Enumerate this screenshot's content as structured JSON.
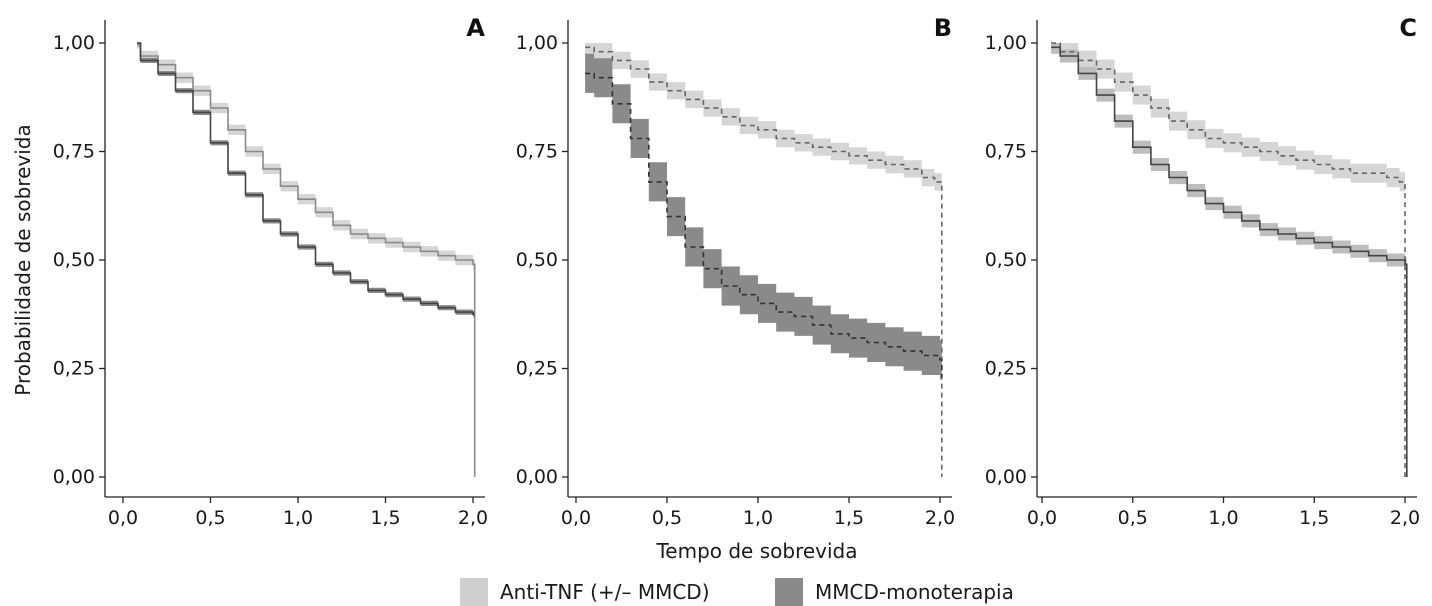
{
  "chart_data": {
    "type": "line",
    "subtype": "kaplan-meier survival curves with confidence bands",
    "ylabel": "Probabilidade de sobrevida",
    "xlabel": "Tempo de sobrevida",
    "xlim": [
      0,
      2
    ],
    "ylim": [
      0,
      1
    ],
    "x_ticks": [
      "0,0",
      "0,5",
      "1,0",
      "1,5",
      "2,0"
    ],
    "y_ticks": [
      "0,00",
      "0,25",
      "0,50",
      "0,75",
      "1,00"
    ],
    "legend": {
      "position": "bottom",
      "items": [
        {
          "label": "Anti-TNF (+/– MMCD)",
          "color": "#cfcfcf"
        },
        {
          "label": "MMCD-monoterapia",
          "color": "#8a8a8a"
        }
      ]
    },
    "panels": [
      {
        "label": "A",
        "line_style": "solid",
        "series": [
          {
            "name": "Anti-TNF (+/– MMCD)",
            "line_color": "#8a8a8a",
            "band_color": "#d6d6d6",
            "x": [
              0.08,
              0.1,
              0.2,
              0.3,
              0.4,
              0.5,
              0.6,
              0.7,
              0.8,
              0.9,
              1.0,
              1.1,
              1.2,
              1.3,
              1.4,
              1.5,
              1.6,
              1.7,
              1.8,
              1.9,
              2.0,
              2.01
            ],
            "y": [
              1.0,
              0.97,
              0.95,
              0.92,
              0.89,
              0.85,
              0.8,
              0.75,
              0.71,
              0.67,
              0.64,
              0.61,
              0.58,
              0.56,
              0.55,
              0.54,
              0.53,
              0.52,
              0.51,
              0.5,
              0.49,
              0.0
            ],
            "band_halfwidth": 0.012
          },
          {
            "name": "MMCD-monoterapia",
            "line_color": "#444444",
            "band_color": "#8a8a8a",
            "x": [
              0.08,
              0.1,
              0.2,
              0.3,
              0.4,
              0.5,
              0.6,
              0.7,
              0.8,
              0.9,
              1.0,
              1.1,
              1.2,
              1.3,
              1.4,
              1.5,
              1.6,
              1.7,
              1.8,
              1.9,
              2.0,
              2.01
            ],
            "y": [
              1.0,
              0.96,
              0.93,
              0.89,
              0.84,
              0.77,
              0.7,
              0.65,
              0.59,
              0.56,
              0.53,
              0.49,
              0.47,
              0.45,
              0.43,
              0.42,
              0.41,
              0.4,
              0.39,
              0.38,
              0.375,
              0.375
            ],
            "band_halfwidth": 0.006
          }
        ]
      },
      {
        "label": "B",
        "line_style": "dashed",
        "series": [
          {
            "name": "Anti-TNF (+/– MMCD)",
            "line_color": "#666666",
            "band_color": "#d6d6d6",
            "x": [
              0.05,
              0.1,
              0.2,
              0.3,
              0.4,
              0.5,
              0.6,
              0.7,
              0.8,
              0.9,
              1.0,
              1.1,
              1.2,
              1.3,
              1.4,
              1.5,
              1.6,
              1.7,
              1.8,
              1.9,
              1.97,
              2.01
            ],
            "y": [
              0.99,
              0.98,
              0.96,
              0.94,
              0.91,
              0.89,
              0.87,
              0.85,
              0.83,
              0.81,
              0.8,
              0.78,
              0.77,
              0.76,
              0.75,
              0.74,
              0.73,
              0.72,
              0.71,
              0.69,
              0.68,
              0.0
            ],
            "band_halfwidth": 0.02
          },
          {
            "name": "MMCD-monoterapia",
            "line_color": "#333333",
            "band_color": "#8a8a8a",
            "x": [
              0.05,
              0.1,
              0.2,
              0.3,
              0.4,
              0.5,
              0.6,
              0.7,
              0.8,
              0.9,
              1.0,
              1.1,
              1.2,
              1.3,
              1.4,
              1.5,
              1.6,
              1.7,
              1.8,
              1.9,
              2.0,
              2.01
            ],
            "y": [
              0.93,
              0.92,
              0.86,
              0.78,
              0.68,
              0.6,
              0.53,
              0.48,
              0.44,
              0.42,
              0.4,
              0.38,
              0.37,
              0.35,
              0.33,
              0.32,
              0.31,
              0.3,
              0.29,
              0.28,
              0.27,
              0.23
            ],
            "band_halfwidth": 0.045
          }
        ]
      },
      {
        "label": "C",
        "line_style": "mixed",
        "series": [
          {
            "name": "Anti-TNF (+/– MMCD)",
            "line_style": "dashed",
            "line_color": "#666666",
            "band_color": "#d6d6d6",
            "x": [
              0.05,
              0.1,
              0.2,
              0.3,
              0.4,
              0.5,
              0.6,
              0.7,
              0.8,
              0.9,
              1.0,
              1.1,
              1.2,
              1.3,
              1.4,
              1.5,
              1.6,
              1.7,
              1.8,
              1.9,
              1.97,
              2.0
            ],
            "y": [
              1.0,
              0.98,
              0.96,
              0.94,
              0.91,
              0.88,
              0.85,
              0.82,
              0.8,
              0.78,
              0.77,
              0.76,
              0.75,
              0.74,
              0.73,
              0.72,
              0.71,
              0.7,
              0.7,
              0.69,
              0.68,
              0.0
            ],
            "band_halfwidth": 0.022
          },
          {
            "name": "MMCD-monoterapia",
            "line_style": "solid",
            "line_color": "#444444",
            "band_color": "#bdbdbd",
            "x": [
              0.05,
              0.1,
              0.2,
              0.3,
              0.4,
              0.5,
              0.6,
              0.7,
              0.8,
              0.9,
              1.0,
              1.1,
              1.2,
              1.3,
              1.4,
              1.5,
              1.6,
              1.7,
              1.8,
              1.9,
              2.0,
              2.01
            ],
            "y": [
              0.99,
              0.97,
              0.93,
              0.88,
              0.82,
              0.76,
              0.72,
              0.69,
              0.66,
              0.63,
              0.61,
              0.59,
              0.57,
              0.56,
              0.55,
              0.54,
              0.53,
              0.52,
              0.51,
              0.5,
              0.49,
              0.0
            ],
            "band_halfwidth": 0.015
          }
        ]
      }
    ]
  }
}
